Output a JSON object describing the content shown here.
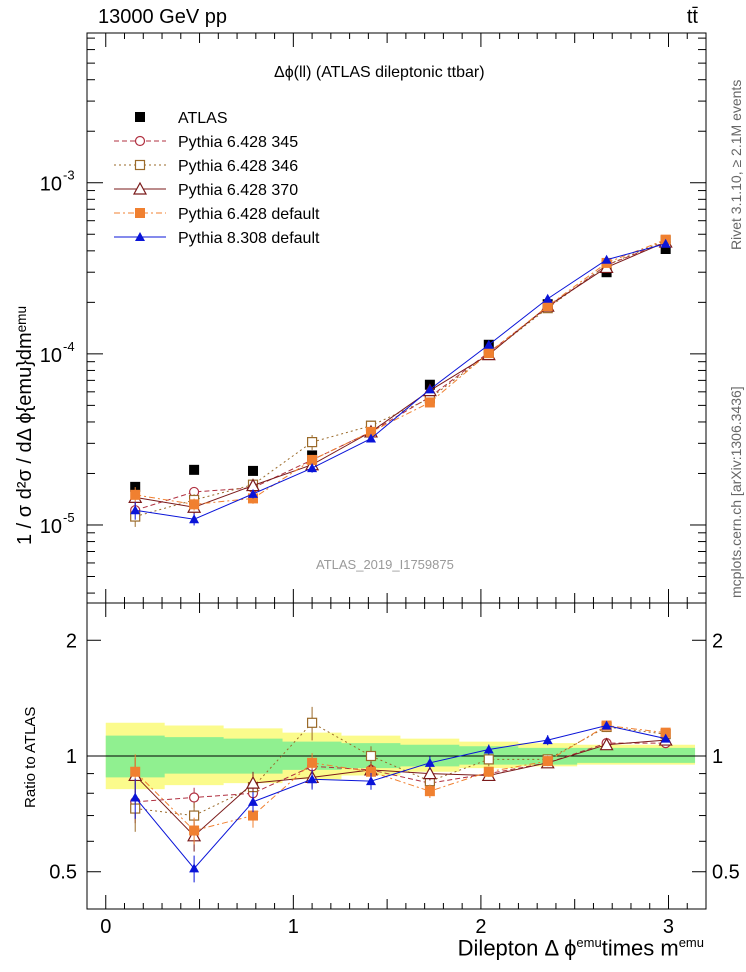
{
  "header": {
    "left": "13000 GeV pp",
    "right": "tt̄"
  },
  "plot_title": "Δϕ(ll) (ATLAS dileptonic ttbar)",
  "analysis_label": "ATLAS_2019_I1759875",
  "side_labels": {
    "rivet": "Rivet 3.1.10, ≥ 2.1M events",
    "mcplots": "mcplots.cern.ch [arXiv:1306.3436]"
  },
  "axes": {
    "main_ylabel": "1 / σ d²σ / dΔ ϕ{emu}dmᵉᵐᵘ",
    "ratio_ylabel": "Ratio to ATLAS",
    "xlabel_parts": [
      "Dilepton Δ ϕ",
      "emu",
      "times m",
      "emu"
    ],
    "x_ticks": [
      "0",
      "1",
      "2",
      "3"
    ],
    "main_y_ticks": [
      "10",
      "-5",
      "10",
      "-4",
      "10",
      "-3"
    ],
    "ratio_y_ticks": [
      "0.5",
      "1",
      "2"
    ]
  },
  "legend": [
    {
      "label": "ATLAS"
    },
    {
      "label": "Pythia 6.428 345"
    },
    {
      "label": "Pythia 6.428 346"
    },
    {
      "label": "Pythia 6.428 370"
    },
    {
      "label": "Pythia 6.428 default"
    },
    {
      "label": "Pythia 8.308 default"
    }
  ],
  "chart_data": {
    "type": "line",
    "x_range": [
      -0.1,
      3.2
    ],
    "main_y_range": [
      3.5e-06,
      0.0075
    ],
    "main_y_scale": "log",
    "ratio_y_range": [
      0.4,
      2.5
    ],
    "ratio_y_scale": "log",
    "grid": false,
    "legend_placement": "top-left",
    "x": [
      0.157,
      0.471,
      0.785,
      1.1,
      1.414,
      1.728,
      2.042,
      2.356,
      2.67,
      2.985
    ],
    "series": [
      {
        "name": "ATLAS",
        "style": "data",
        "color": "#000000",
        "marker": "square-filled",
        "dash": "",
        "values": [
          1.67e-05,
          2.1e-05,
          2.07e-05,
          2.55e-05,
          3.8e-05,
          6.6e-05,
          0.000113,
          0.000195,
          0.0003,
          0.00041
        ],
        "ratio": [
          1,
          1,
          1,
          1,
          1,
          1,
          1,
          1,
          1,
          1
        ],
        "ratio_band_inner": [
          [
            0.88,
            1.13
          ],
          [
            0.9,
            1.12
          ],
          [
            0.9,
            1.11
          ],
          [
            0.92,
            1.09
          ],
          [
            0.93,
            1.08
          ],
          [
            0.94,
            1.07
          ],
          [
            0.95,
            1.06
          ],
          [
            0.95,
            1.05
          ],
          [
            0.96,
            1.05
          ],
          [
            0.96,
            1.05
          ]
        ],
        "ratio_band_outer": [
          [
            0.82,
            1.22
          ],
          [
            0.84,
            1.2
          ],
          [
            0.85,
            1.18
          ],
          [
            0.87,
            1.15
          ],
          [
            0.89,
            1.13
          ],
          [
            0.91,
            1.11
          ],
          [
            0.93,
            1.09
          ],
          [
            0.94,
            1.08
          ],
          [
            0.95,
            1.07
          ],
          [
            0.95,
            1.07
          ]
        ]
      },
      {
        "name": "Pythia 6.428 345",
        "color": "#b03040",
        "marker": "circle-open",
        "dash": "5,3",
        "values": [
          1.22e-05,
          1.56e-05,
          1.65e-05,
          2.4e-05,
          3.5e-05,
          5.6e-05,
          0.000102,
          0.000187,
          0.00033,
          0.00045
        ],
        "ratio": [
          0.76,
          0.78,
          0.8,
          0.94,
          0.92,
          0.85,
          0.9,
          0.96,
          1.08,
          1.08
        ],
        "err": [
          0.12,
          0.06,
          0.07,
          0.06,
          0.05,
          0.04,
          0.03,
          0.03,
          0.02,
          0.02
        ]
      },
      {
        "name": "Pythia 6.428 346",
        "color": "#9a6a2a",
        "marker": "square-open",
        "dash": "2,3",
        "values": [
          1.12e-05,
          1.4e-05,
          1.72e-05,
          3.05e-05,
          3.8e-05,
          5.5e-05,
          0.0001,
          0.000185,
          0.00033,
          0.00046
        ],
        "ratio": [
          0.73,
          0.7,
          0.83,
          1.22,
          1.0,
          0.86,
          0.98,
          0.98,
          1.19,
          1.14
        ],
        "err": [
          0.13,
          0.08,
          0.08,
          0.1,
          0.06,
          0.05,
          0.04,
          0.03,
          0.03,
          0.02
        ]
      },
      {
        "name": "Pythia 6.428 370",
        "color": "#7a1a1a",
        "marker": "triangle-open",
        "dash": "",
        "values": [
          1.45e-05,
          1.27e-05,
          1.7e-05,
          2.25e-05,
          3.5e-05,
          6.1e-05,
          9.9e-05,
          0.00019,
          0.00032,
          0.00045
        ],
        "ratio": [
          0.89,
          0.62,
          0.85,
          0.88,
          0.92,
          0.9,
          0.89,
          0.96,
          1.07,
          1.1
        ],
        "err": [
          0.11,
          0.09,
          0.07,
          0.06,
          0.05,
          0.04,
          0.03,
          0.03,
          0.02,
          0.02
        ]
      },
      {
        "name": "Pythia 6.428 default",
        "color": "#f08030",
        "marker": "square-filled",
        "dash": "6,3,2,3",
        "values": [
          1.5e-05,
          1.32e-05,
          1.43e-05,
          2.4e-05,
          3.5e-05,
          5.2e-05,
          0.000101,
          0.00019,
          0.00034,
          0.000465
        ],
        "ratio": [
          0.91,
          0.64,
          0.7,
          0.96,
          0.91,
          0.81,
          0.91,
          0.97,
          1.2,
          1.15
        ],
        "err": [
          0.11,
          0.08,
          0.07,
          0.06,
          0.05,
          0.04,
          0.03,
          0.03,
          0.02,
          0.02
        ]
      },
      {
        "name": "Pythia 8.308 default",
        "color": "#0a14d8",
        "marker": "triangle-filled",
        "dash": "",
        "values": [
          1.22e-05,
          1.08e-05,
          1.52e-05,
          2.15e-05,
          3.2e-05,
          6.2e-05,
          0.000113,
          0.00021,
          0.000355,
          0.00044
        ],
        "ratio": [
          0.78,
          0.51,
          0.76,
          0.87,
          0.86,
          0.96,
          1.04,
          1.1,
          1.2,
          1.11
        ],
        "err": [
          0.12,
          0.08,
          0.06,
          0.06,
          0.05,
          0.04,
          0.03,
          0.03,
          0.02,
          0.02
        ]
      }
    ]
  }
}
